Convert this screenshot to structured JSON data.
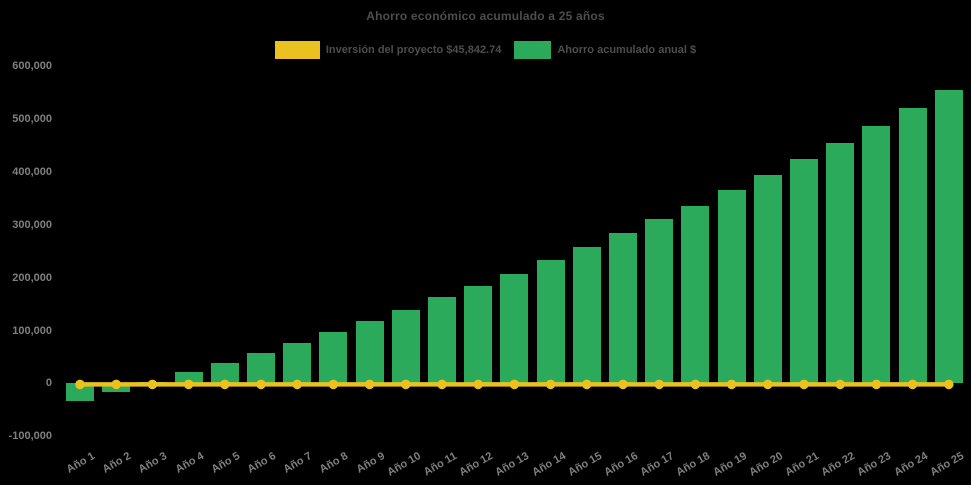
{
  "chart_data": {
    "type": "bar",
    "title": "Ahorro económico acumulado a 25 años",
    "categories": [
      "Año 1",
      "Año 2",
      "Año 3",
      "Año 4",
      "Año 5",
      "Año 6",
      "Año 7",
      "Año 8",
      "Año 9",
      "Año 10",
      "Año 11",
      "Año 12",
      "Año 13",
      "Año 14",
      "Año 15",
      "Año 16",
      "Año 17",
      "Año 18",
      "Año 19",
      "Año 20",
      "Año 21",
      "Año 22",
      "Año 23",
      "Año 24",
      "Año 25"
    ],
    "series": [
      {
        "name": "Inversión del proyecto $45,842.74",
        "type": "line",
        "color": "#EAC11E",
        "values": [
          0,
          0,
          0,
          0,
          0,
          0,
          0,
          0,
          0,
          0,
          0,
          0,
          0,
          0,
          0,
          0,
          0,
          0,
          0,
          0,
          0,
          0,
          0,
          0,
          0
        ]
      },
      {
        "name": "Ahorro acumulado anual $",
        "type": "bar",
        "color": "#2BAA5B",
        "values": [
          -34000,
          -17000,
          3000,
          21000,
          38500,
          58000,
          77000,
          98000,
          118500,
          139500,
          163500,
          185000,
          207000,
          234000,
          258000,
          285000,
          311500,
          336000,
          365500,
          394000,
          423500,
          455000,
          487000,
          521000,
          555000
        ]
      }
    ],
    "ylim": [
      -100000,
      600000
    ],
    "ytick_step": 100000,
    "ytick_labels": [
      "-100,000",
      "0",
      "100,000",
      "200,000",
      "300,000",
      "400,000",
      "500,000",
      "600,000"
    ],
    "grid": false,
    "legend_position": "top",
    "background_color": "#000000",
    "title_color": "#4d4d4d",
    "axis_label_color": "#7f7f7f"
  }
}
